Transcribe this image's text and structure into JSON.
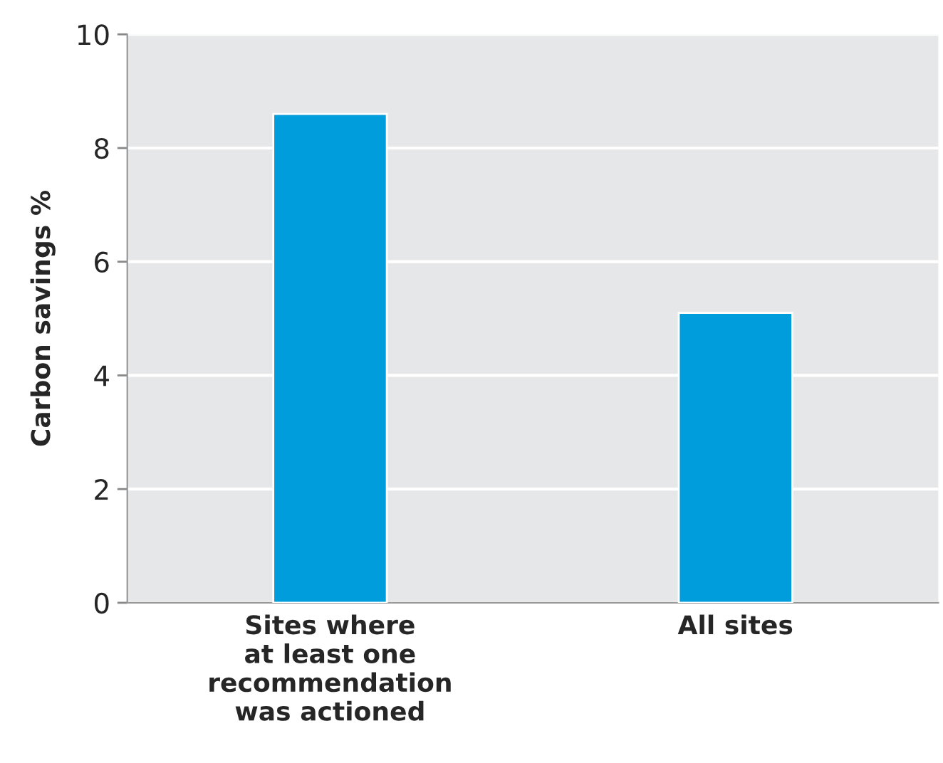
{
  "chart_data": {
    "type": "bar",
    "ylabel": "Carbon savings %",
    "categories": [
      "Sites where\nat least one\nrecommendation\nwas actioned",
      "All sites"
    ],
    "values": [
      8.6,
      5.1
    ],
    "color": "#009ddc",
    "ylim": [
      0,
      10
    ],
    "yticks": [
      0,
      2,
      4,
      6,
      8,
      10
    ],
    "grid": "y"
  }
}
